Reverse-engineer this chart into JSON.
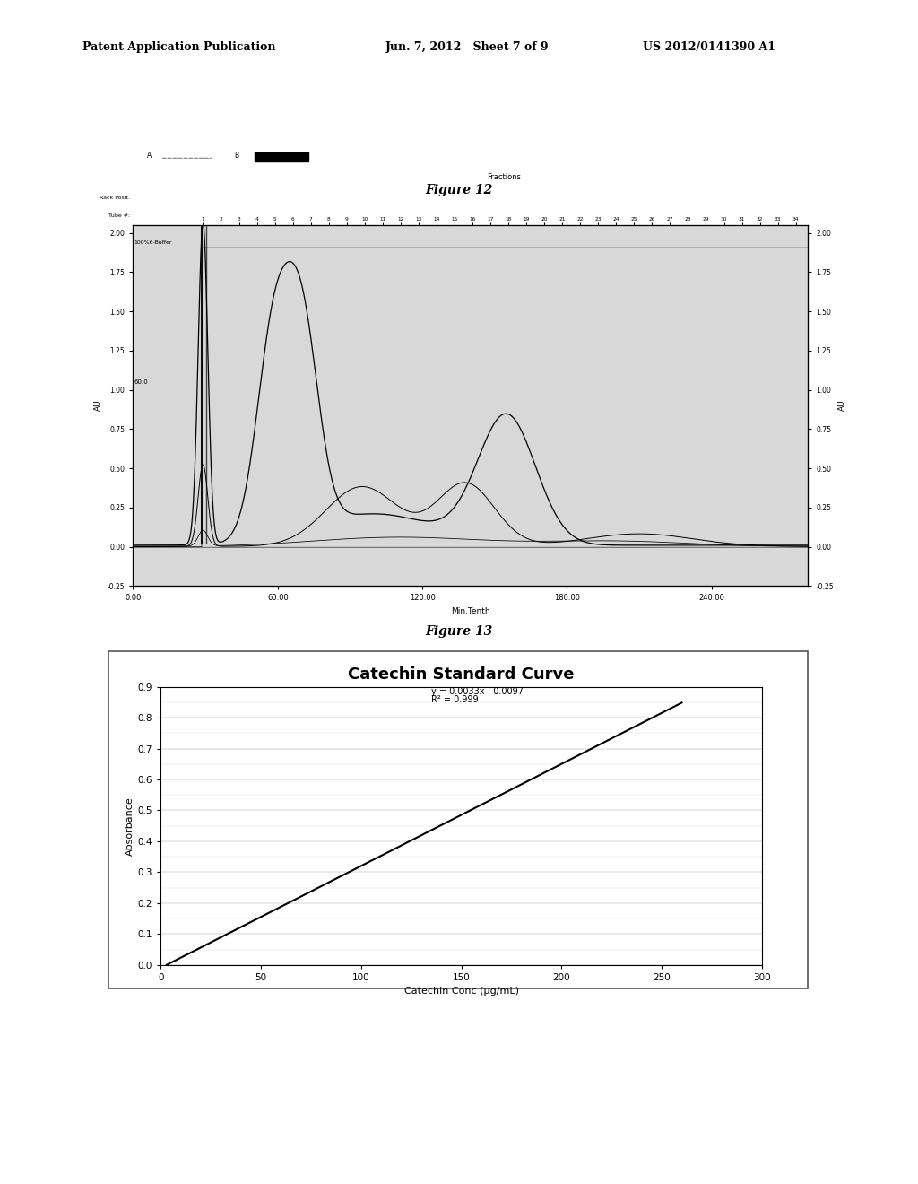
{
  "page_header_left": "Patent Application Publication",
  "page_header_mid": "Jun. 7, 2012   Sheet 7 of 9",
  "page_header_right": "US 2012/0141390 A1",
  "fig12_title": "Figure 12",
  "fig13_title": "Figure 13",
  "fig13_chart_title": "Catechin Standard Curve",
  "fig13_xlabel": "Catechin Conc (μg/mL)",
  "fig13_ylabel": "Absorbance",
  "fig13_equation": "y = 0.0033x - 0.0097",
  "fig13_r2": "R² = 0.999",
  "fig13_xlim": [
    0,
    300
  ],
  "fig13_ylim": [
    0.0,
    0.9
  ],
  "fig13_xticks": [
    0,
    50,
    100,
    150,
    200,
    250,
    300
  ],
  "fig13_yticks": [
    0.0,
    0.1,
    0.2,
    0.3,
    0.4,
    0.5,
    0.6,
    0.7,
    0.8,
    0.9
  ],
  "bg_color": "#ffffff",
  "fig12_bg": "#d8d8d8",
  "fig13_bg": "#ffffff"
}
